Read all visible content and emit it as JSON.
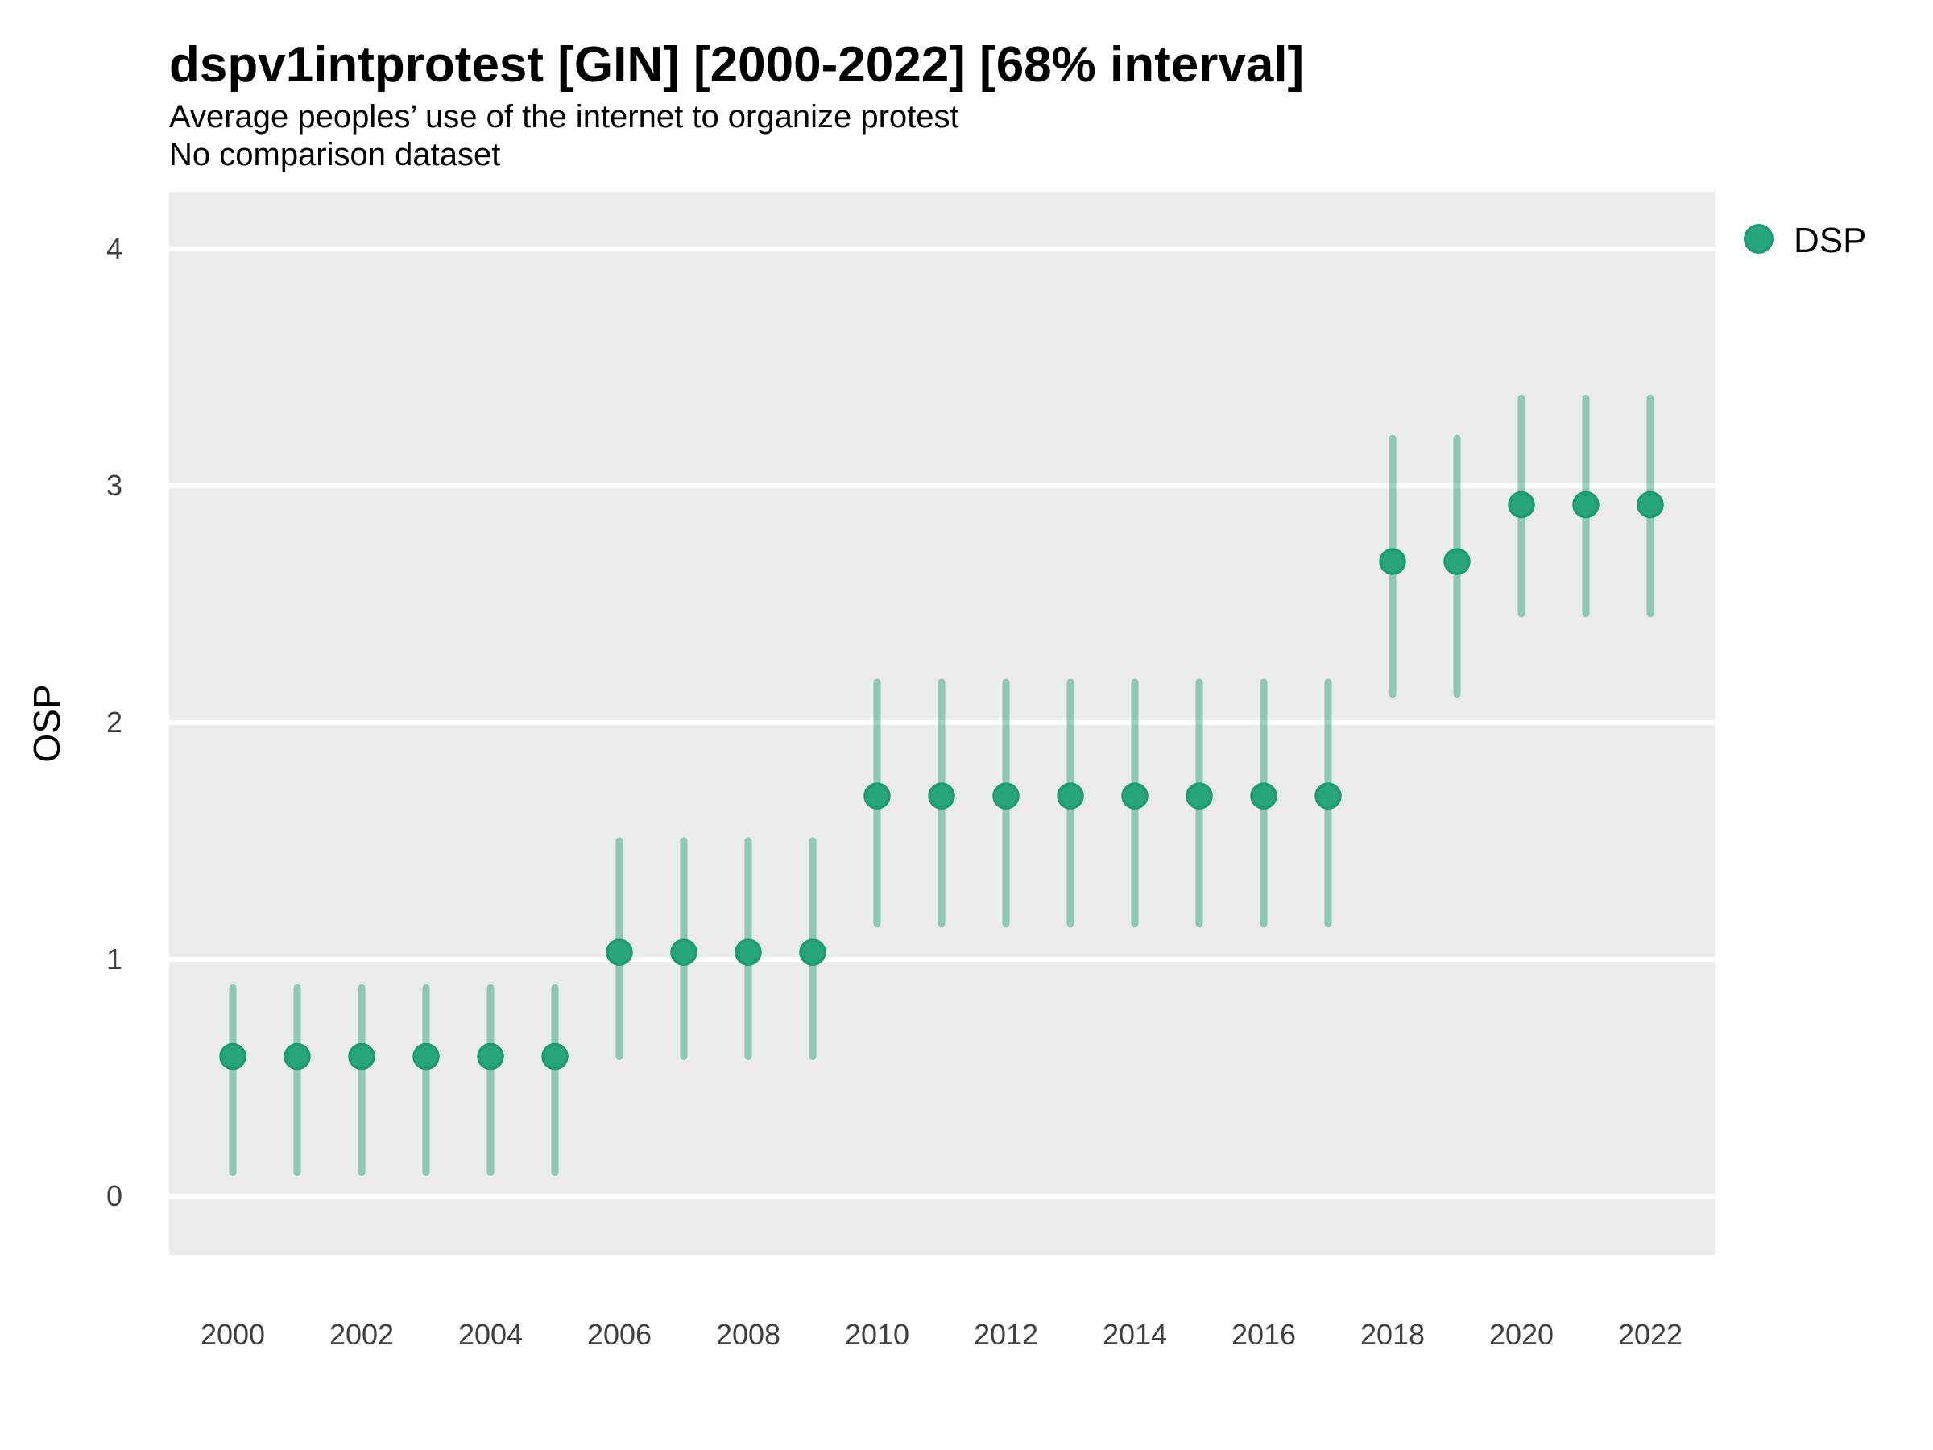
{
  "title": "dspv1intprotest [GIN] [2000-2022] [68% interval]",
  "subtitle_line1": "Average peoples’ use of the internet to organize protest",
  "subtitle_line2": "No comparison dataset",
  "y_axis_label": "OSP",
  "legend": {
    "label": "DSP",
    "marker": "circle-icon"
  },
  "colors": {
    "panel_background": "#EBEBEB",
    "gridline": "#FFFFFF",
    "point_fill": "#27A57E",
    "point_stroke": "#1D9C73",
    "interval_line": "#1B9E77",
    "interval_opacity": 0.45,
    "axis_text": "#404040"
  },
  "chart_data": {
    "type": "scatter",
    "title": "dspv1intprotest [GIN] [2000-2022] [68% interval]",
    "subtitle": "Average peoples’ use of the internet to organize protest",
    "note": "No comparison dataset",
    "xlabel": "",
    "ylabel": "OSP",
    "interval": "68%",
    "grid": "horizontal-major-only",
    "legend_position": "right-top",
    "xticks": [
      2000,
      2002,
      2004,
      2006,
      2008,
      2010,
      2012,
      2014,
      2016,
      2018,
      2020,
      2022
    ],
    "yticks": [
      0,
      1,
      2,
      3,
      4
    ],
    "xlim": [
      1999,
      2023
    ],
    "ylim": [
      -0.25,
      4.24
    ],
    "series": [
      {
        "name": "DSP",
        "points": [
          {
            "year": 2000,
            "est": 0.59,
            "lo": 0.1,
            "hi": 0.88
          },
          {
            "year": 2001,
            "est": 0.59,
            "lo": 0.1,
            "hi": 0.88
          },
          {
            "year": 2002,
            "est": 0.59,
            "lo": 0.1,
            "hi": 0.88
          },
          {
            "year": 2003,
            "est": 0.59,
            "lo": 0.1,
            "hi": 0.88
          },
          {
            "year": 2004,
            "est": 0.59,
            "lo": 0.1,
            "hi": 0.88
          },
          {
            "year": 2005,
            "est": 0.59,
            "lo": 0.1,
            "hi": 0.88
          },
          {
            "year": 2006,
            "est": 1.03,
            "lo": 0.59,
            "hi": 1.5
          },
          {
            "year": 2007,
            "est": 1.03,
            "lo": 0.59,
            "hi": 1.5
          },
          {
            "year": 2008,
            "est": 1.03,
            "lo": 0.59,
            "hi": 1.5
          },
          {
            "year": 2009,
            "est": 1.03,
            "lo": 0.59,
            "hi": 1.5
          },
          {
            "year": 2010,
            "est": 1.69,
            "lo": 1.15,
            "hi": 2.17
          },
          {
            "year": 2011,
            "est": 1.69,
            "lo": 1.15,
            "hi": 2.17
          },
          {
            "year": 2012,
            "est": 1.69,
            "lo": 1.15,
            "hi": 2.17
          },
          {
            "year": 2013,
            "est": 1.69,
            "lo": 1.15,
            "hi": 2.17
          },
          {
            "year": 2014,
            "est": 1.69,
            "lo": 1.15,
            "hi": 2.17
          },
          {
            "year": 2015,
            "est": 1.69,
            "lo": 1.15,
            "hi": 2.17
          },
          {
            "year": 2016,
            "est": 1.69,
            "lo": 1.15,
            "hi": 2.17
          },
          {
            "year": 2017,
            "est": 1.69,
            "lo": 1.15,
            "hi": 2.17
          },
          {
            "year": 2018,
            "est": 2.68,
            "lo": 2.12,
            "hi": 3.2
          },
          {
            "year": 2019,
            "est": 2.68,
            "lo": 2.12,
            "hi": 3.2
          },
          {
            "year": 2020,
            "est": 2.92,
            "lo": 2.46,
            "hi": 3.37
          },
          {
            "year": 2021,
            "est": 2.92,
            "lo": 2.46,
            "hi": 3.37
          },
          {
            "year": 2022,
            "est": 2.92,
            "lo": 2.46,
            "hi": 3.37
          }
        ]
      }
    ]
  }
}
